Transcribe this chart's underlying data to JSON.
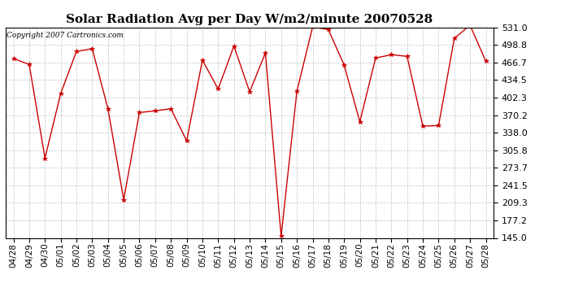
{
  "title": "Solar Radiation Avg per Day W/m2/minute 20070528",
  "copyright_text": "Copyright 2007 Cartronics.com",
  "labels": [
    "04/28",
    "04/29",
    "04/30",
    "05/01",
    "05/02",
    "05/03",
    "05/04",
    "05/05",
    "05/06",
    "05/07",
    "05/08",
    "05/09",
    "05/10",
    "05/11",
    "05/12",
    "05/13",
    "05/14",
    "05/15",
    "05/16",
    "05/17",
    "05/18",
    "05/19",
    "05/20",
    "05/21",
    "05/22",
    "05/23",
    "05/24",
    "05/25",
    "05/26",
    "05/27",
    "05/28"
  ],
  "values": [
    474,
    463,
    291,
    410,
    487,
    492,
    382,
    215,
    375,
    378,
    382,
    323,
    471,
    418,
    497,
    413,
    484,
    148,
    414,
    532,
    527,
    462,
    358,
    475,
    481,
    478,
    350,
    351,
    511,
    535,
    469
  ],
  "y_ticks": [
    145.0,
    177.2,
    209.3,
    241.5,
    273.7,
    305.8,
    338.0,
    370.2,
    402.3,
    434.5,
    466.7,
    498.8,
    531.0
  ],
  "ylim": [
    145.0,
    531.0
  ],
  "line_color": "#cc0000",
  "marker_color": "#cc0000",
  "bg_color": "#ffffff",
  "plot_bg_color": "#ffffff",
  "grid_color": "#bbbbbb",
  "title_fontsize": 11,
  "copyright_fontsize": 6.5,
  "tick_fontsize": 7.5,
  "ytick_fontsize": 8
}
